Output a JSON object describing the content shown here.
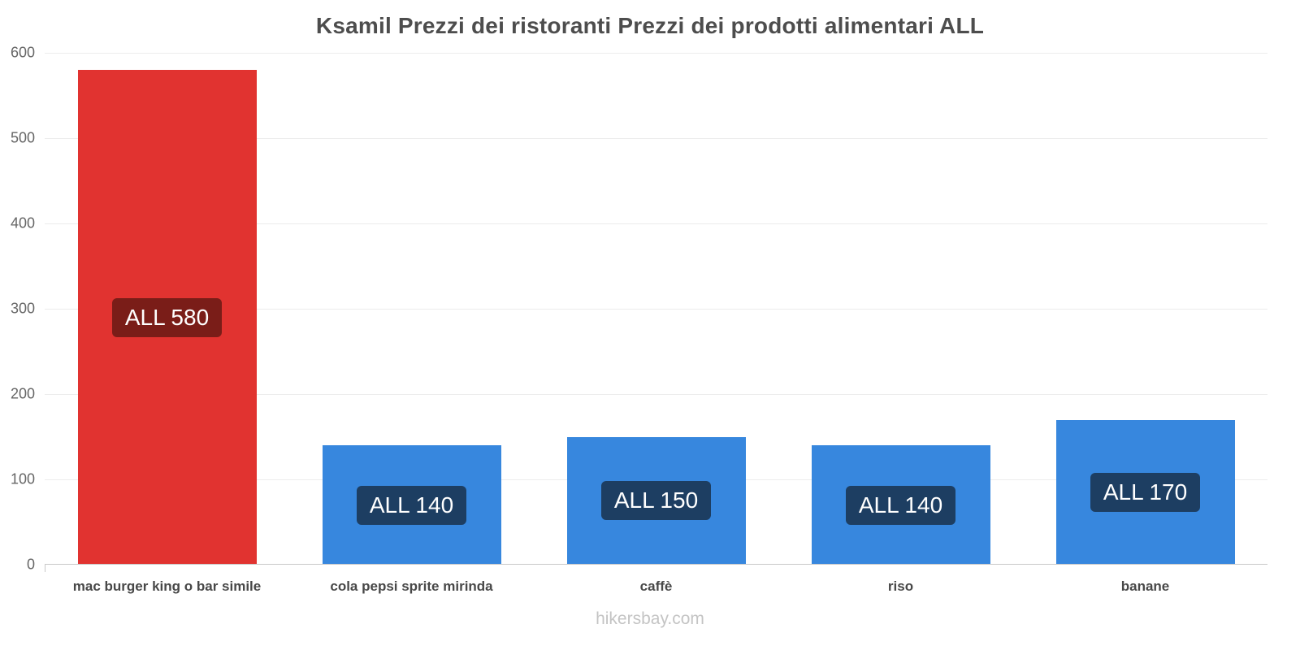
{
  "footer": "hikersbay.com",
  "chart_data": {
    "type": "bar",
    "title": "Ksamil Prezzi dei ristoranti Prezzi dei prodotti alimentari ALL",
    "currency": "ALL",
    "categories": [
      "mac burger king o bar simile",
      "cola pepsi sprite mirinda",
      "caffè",
      "riso",
      "banane"
    ],
    "values": [
      580,
      140,
      150,
      140,
      170
    ],
    "labels": [
      "ALL 580",
      "ALL 140",
      "ALL 150",
      "ALL 140",
      "ALL 170"
    ],
    "bar_colors": [
      "#e13330",
      "#3787de",
      "#3787de",
      "#3787de",
      "#3787de"
    ],
    "label_bg_colors": [
      "#7a1d18",
      "#1d3e62",
      "#1d3e62",
      "#1d3e62",
      "#1d3e62"
    ],
    "xlabel": "",
    "ylabel": "",
    "ylim": [
      0,
      600
    ],
    "yticks": [
      0,
      100,
      200,
      300,
      400,
      500,
      600
    ],
    "grid": "horizontal",
    "legend": "none"
  }
}
